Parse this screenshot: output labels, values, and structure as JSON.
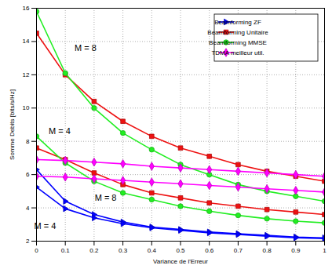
{
  "chart_data": {
    "type": "line",
    "x_label": "Variance de l'Erreur",
    "y_label": "Somme Debits [bits/s/Hz]",
    "x": [
      0,
      0.1,
      0.2,
      0.3,
      0.4,
      0.5,
      0.6,
      0.7,
      0.8,
      0.9,
      1
    ],
    "xlim": [
      0,
      1
    ],
    "xticks": [
      0,
      0.1,
      0.2,
      0.3,
      0.4,
      0.5,
      0.6,
      0.7,
      0.8,
      0.9,
      1
    ],
    "ylim": [
      2,
      16
    ],
    "yticks": [
      2,
      4,
      6,
      8,
      10,
      12,
      14,
      16
    ],
    "grid": true,
    "legend": "upper right",
    "series": [
      {
        "name": "Beamforming ZF",
        "color": "#0000ff",
        "marker": "triangle-right",
        "values": [
          6.3,
          4.4,
          3.6,
          3.15,
          2.85,
          2.7,
          2.55,
          2.45,
          2.35,
          2.25,
          2.2
        ]
      },
      {
        "name": "Beamforming ZF",
        "color": "#0000ff",
        "marker": "triangle-right",
        "values": [
          5.25,
          3.95,
          3.4,
          3.05,
          2.8,
          2.65,
          2.5,
          2.4,
          2.3,
          2.2,
          2.15
        ]
      },
      {
        "name": "Beamforming Unitaire",
        "color": "#ee1111",
        "marker": "square",
        "values": [
          14.5,
          12.0,
          10.4,
          9.2,
          8.3,
          7.6,
          7.1,
          6.6,
          6.2,
          5.9,
          5.6
        ]
      },
      {
        "name": "Beamforming Unitaire",
        "color": "#ee1111",
        "marker": "square",
        "values": [
          7.6,
          6.9,
          6.1,
          5.4,
          4.9,
          4.6,
          4.3,
          4.1,
          3.9,
          3.75,
          3.6
        ]
      },
      {
        "name": "Beamforming MMSE",
        "color": "#22ee22",
        "marker": "circle",
        "values": [
          15.8,
          12.1,
          10.0,
          8.5,
          7.5,
          6.6,
          6.0,
          5.4,
          5.0,
          4.7,
          4.4
        ]
      },
      {
        "name": "Beamforming MMSE",
        "color": "#22ee22",
        "marker": "circle",
        "values": [
          8.3,
          6.7,
          5.6,
          4.9,
          4.5,
          4.1,
          3.8,
          3.55,
          3.35,
          3.2,
          3.1
        ]
      },
      {
        "name": "TDMA meilleur util.",
        "color": "#ff00ff",
        "marker": "diamond",
        "values": [
          6.9,
          6.85,
          6.75,
          6.65,
          6.5,
          6.4,
          6.3,
          6.2,
          6.1,
          6.0,
          5.9
        ]
      },
      {
        "name": "TDMA meilleur util.",
        "color": "#ff00ff",
        "marker": "diamond",
        "values": [
          5.9,
          5.85,
          5.75,
          5.65,
          5.55,
          5.45,
          5.35,
          5.25,
          5.15,
          5.05,
          4.95
        ]
      }
    ],
    "annotations": [
      {
        "text": "M = 8",
        "x": 0.17,
        "y": 13.6
      },
      {
        "text": "M = 4",
        "x": 0.08,
        "y": 8.6
      },
      {
        "text": "M = 8",
        "x": 0.24,
        "y": 4.6
      },
      {
        "text": "M = 4",
        "x": 0.03,
        "y": 2.9
      }
    ]
  }
}
